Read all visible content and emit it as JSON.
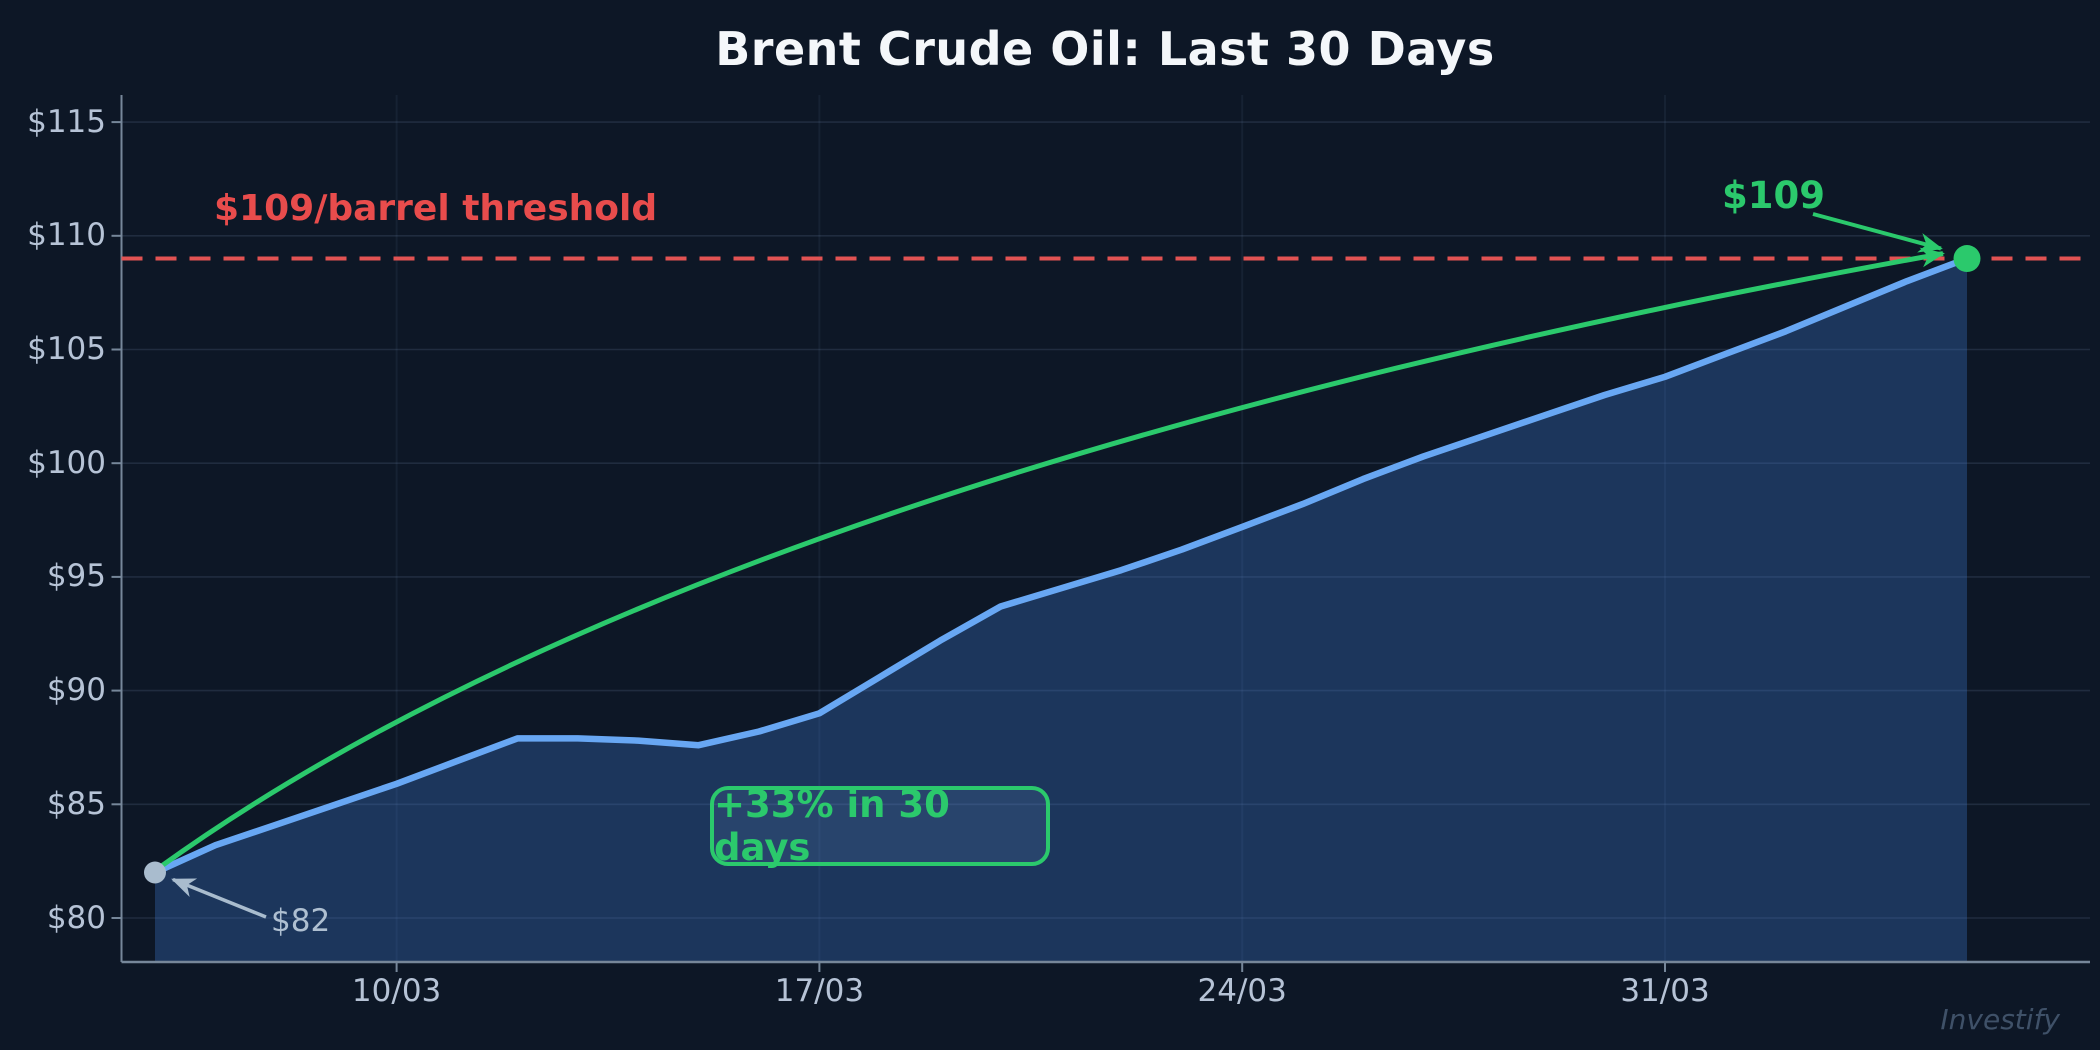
{
  "title": "Brent Crude Oil: Last 30 Days",
  "watermark": "Investify",
  "chart_data": {
    "type": "area",
    "title": "Brent Crude Oil: Last 30 Days",
    "xlabel": "",
    "ylabel": "",
    "x_unit": "day",
    "start_value": 82,
    "end_value": 109,
    "values": [
      82.0,
      83.2,
      84.1,
      85.0,
      85.9,
      86.9,
      87.9,
      87.9,
      87.8,
      87.6,
      88.2,
      89.0,
      90.6,
      92.2,
      93.7,
      94.5,
      95.3,
      96.2,
      97.2,
      98.2,
      99.3,
      100.3,
      101.2,
      102.1,
      103.0,
      103.8,
      104.8,
      105.8,
      106.9,
      108.0,
      109.0
    ],
    "x_ticks": [
      {
        "day": 4,
        "label": "10/03"
      },
      {
        "day": 11,
        "label": "17/03"
      },
      {
        "day": 18,
        "label": "24/03"
      },
      {
        "day": 25,
        "label": "31/03"
      }
    ],
    "y_ticks": [
      {
        "value": 80,
        "label": "$80"
      },
      {
        "value": 85,
        "label": "$85"
      },
      {
        "value": 90,
        "label": "$90"
      },
      {
        "value": 95,
        "label": "$95"
      },
      {
        "value": 100,
        "label": "$100"
      },
      {
        "value": 105,
        "label": "$105"
      },
      {
        "value": 110,
        "label": "$110"
      },
      {
        "value": 115,
        "label": "$115"
      }
    ],
    "ylim": [
      78,
      116.5
    ],
    "grid": true,
    "legend": false,
    "threshold": {
      "value": 109,
      "label": "$109/barrel threshold"
    },
    "annotations": {
      "start": {
        "label": "$82",
        "value": 82,
        "day": 0
      },
      "end": {
        "label": "$109",
        "value": 109,
        "day": 30
      },
      "badge": {
        "label": "+33% in 30 days"
      }
    },
    "colors": {
      "background": "#0d1726",
      "line": "#68a7f3",
      "area": "rgba(61,118,204,0.33)",
      "green": "#2bc96c",
      "red": "#e25353",
      "red_text": "#e84c4c",
      "grid": "rgba(142,168,205,0.15)",
      "grid_vertical": "rgba(142,168,205,0.08)",
      "axis": "#76879a",
      "tick_text": "#b6c3d6",
      "gray_marker": "#a9bcce",
      "gray_text": "#aebfd1",
      "title_text": "#f4f7fa",
      "watermark_text": "#3f5168",
      "badge_fill": "rgba(130,170,230,0.12)"
    }
  }
}
